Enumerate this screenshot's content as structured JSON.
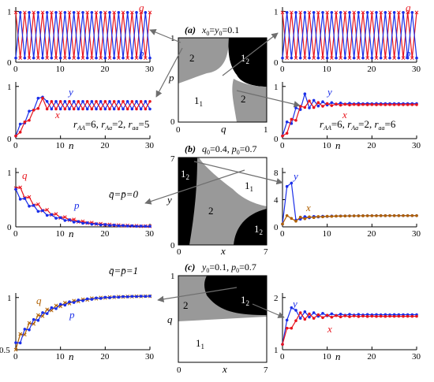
{
  "colors": {
    "red": "#e8141c",
    "blue": "#1a2ee8",
    "gray": "#999999",
    "black": "#000000",
    "arrow": "#6e6e6e"
  },
  "center": [
    {
      "tag": "(a)",
      "header": "x0=y0=0.1",
      "xlabel": "q",
      "ylabel": "p",
      "xticks": [
        "0",
        "1"
      ],
      "yticks": [
        "0",
        "1"
      ],
      "regions": [
        "2",
        "1_2",
        "1_1",
        "2"
      ]
    },
    {
      "tag": "(b)",
      "header": "q0=0.4, p0=0.7",
      "xlabel": "x",
      "ylabel": "y",
      "xticks": [
        "0",
        "7"
      ],
      "yticks": [
        "0",
        "7"
      ],
      "regions": [
        "1_2",
        "1_1",
        "2",
        "1_2"
      ]
    },
    {
      "tag": "(c)",
      "header": "y0=0.1, p0=0.7",
      "xlabel": "x",
      "ylabel": "q",
      "xticks": [
        "0",
        "7"
      ],
      "yticks": [
        "0",
        "1"
      ],
      "regions": [
        "2",
        "1_2",
        "1_1"
      ]
    }
  ],
  "panels": {
    "tl": {
      "xticks": [
        "0",
        "10",
        "20",
        "30"
      ],
      "yticks": [
        "0",
        "1"
      ],
      "series": [
        "q",
        "p"
      ]
    },
    "tr": {
      "xticks": [
        "0",
        "10",
        "20",
        "30"
      ],
      "yticks": [
        "0",
        "1"
      ],
      "series": [
        "q",
        "p"
      ]
    },
    "ml": {
      "xticks": [
        "0",
        "10",
        "20",
        "30"
      ],
      "yticks": [
        "0",
        "1"
      ],
      "xlabel": "n",
      "series": [
        "y",
        "x"
      ],
      "params": "rAA=6, rAa=2, raa=5"
    },
    "mr": {
      "xticks": [
        "0",
        "10",
        "20",
        "30"
      ],
      "yticks": [
        "0",
        "1"
      ],
      "xlabel": "n",
      "series": [
        "y",
        "x"
      ],
      "params": "rAA=6, rAa=2, raa=6"
    },
    "bl1": {
      "xticks": [
        "0",
        "10",
        "20",
        "30"
      ],
      "yticks": [
        "0",
        "1"
      ],
      "xlabel": "n",
      "series": [
        "q",
        "p"
      ],
      "note": "q̄=p̄=0"
    },
    "br1": {
      "xticks": [
        "0",
        "10",
        "20",
        "30"
      ],
      "yticks": [
        "0",
        "4",
        "8"
      ],
      "series": [
        "y",
        "x"
      ]
    },
    "bl2": {
      "xticks": [
        "0",
        "10",
        "20",
        "30"
      ],
      "yticks": [
        "0.5",
        "1"
      ],
      "xlabel": "n",
      "series": [
        "q",
        "p"
      ],
      "note": "q̄=p̄=1"
    },
    "br2": {
      "xticks": [
        "0",
        "10",
        "20",
        "30"
      ],
      "yticks": [
        "1",
        "2"
      ],
      "xlabel": "n",
      "series": [
        "y",
        "x"
      ]
    }
  }
}
